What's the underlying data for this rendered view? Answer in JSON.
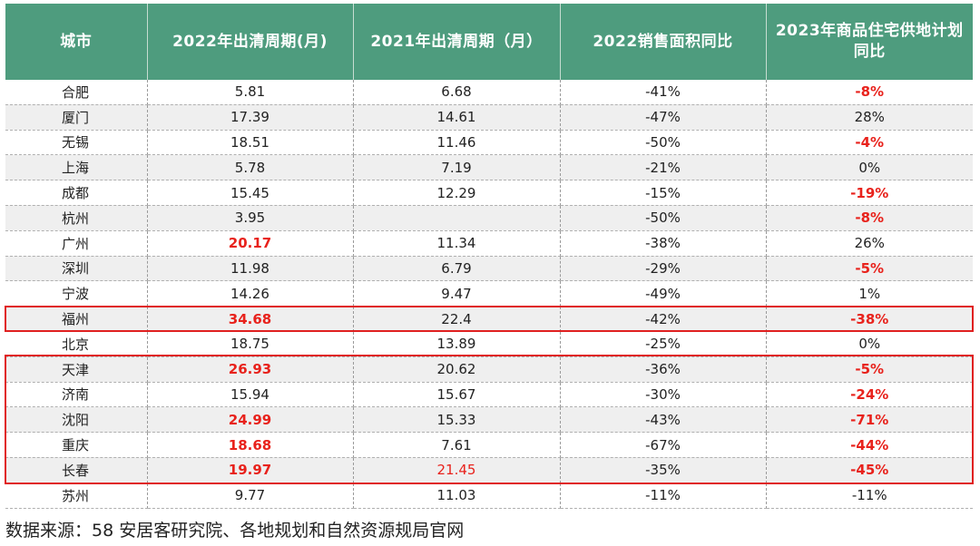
{
  "table": {
    "headers": [
      "城市",
      "2022年出清周期(月)",
      "2021年出清周期（月）",
      "2022销售面积同比",
      "2023年商品住宅供地计划同比"
    ],
    "rows": [
      {
        "cells": [
          "合肥",
          "5.81",
          "6.68",
          "-41%",
          "-8%"
        ],
        "red": [
          4
        ]
      },
      {
        "cells": [
          "厦门",
          "17.39",
          "14.61",
          "-47%",
          "28%"
        ],
        "red": []
      },
      {
        "cells": [
          "无锡",
          "18.51",
          "11.46",
          "-50%",
          "-4%"
        ],
        "red": [
          4
        ]
      },
      {
        "cells": [
          "上海",
          "5.78",
          "7.19",
          "-21%",
          "0%"
        ],
        "red": []
      },
      {
        "cells": [
          "成都",
          "15.45",
          "12.29",
          "-15%",
          "-19%"
        ],
        "red": [
          4
        ]
      },
      {
        "cells": [
          "杭州",
          "3.95",
          "",
          "-50%",
          "-8%"
        ],
        "red": [
          4
        ]
      },
      {
        "cells": [
          "广州",
          "20.17",
          "11.34",
          "-38%",
          "26%"
        ],
        "red": [
          1
        ]
      },
      {
        "cells": [
          "深圳",
          "11.98",
          "6.79",
          "-29%",
          "-5%"
        ],
        "red": [
          4
        ]
      },
      {
        "cells": [
          "宁波",
          "14.26",
          "9.47",
          "-49%",
          "1%"
        ],
        "red": []
      },
      {
        "cells": [
          "福州",
          "34.68",
          "22.4",
          "-42%",
          "-38%"
        ],
        "red": [
          1,
          4
        ]
      },
      {
        "cells": [
          "北京",
          "18.75",
          "13.89",
          "-25%",
          "0%"
        ],
        "red": []
      },
      {
        "cells": [
          "天津",
          "26.93",
          "20.62",
          "-36%",
          "-5%"
        ],
        "red": [
          1,
          4
        ]
      },
      {
        "cells": [
          "济南",
          "15.94",
          "15.67",
          "-30%",
          "-24%"
        ],
        "red": [
          4
        ]
      },
      {
        "cells": [
          "沈阳",
          "24.99",
          "15.33",
          "-43%",
          "-71%"
        ],
        "red": [
          1,
          4
        ]
      },
      {
        "cells": [
          "重庆",
          "18.68",
          "7.61",
          "-67%",
          "-44%"
        ],
        "red": [
          1,
          4
        ]
      },
      {
        "cells": [
          "长春",
          "19.97",
          "21.45",
          "-35%",
          "-45%"
        ],
        "red": [
          1,
          2,
          4
        ],
        "thin": [
          2
        ]
      },
      {
        "cells": [
          "苏州",
          "9.77",
          "11.03",
          "-11%",
          "-11%"
        ],
        "red": []
      }
    ],
    "highlight_groups": [
      [
        "福州"
      ],
      [
        "天津",
        "济南",
        "沈阳",
        "重庆",
        "长春"
      ]
    ]
  },
  "source_note": "数据来源：58 安居客研究院、各地规划和自然资源规局官网",
  "colors": {
    "header_bg": "#4e9c7e",
    "header_text": "#ffffff",
    "alt_row_bg": "#efefef",
    "highlight_red": "#e8221c",
    "box_border": "#e02020"
  }
}
